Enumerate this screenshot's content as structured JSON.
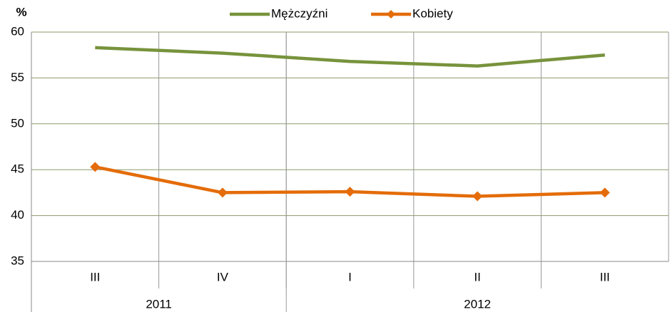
{
  "chart_data": {
    "type": "line",
    "y_label": "%",
    "categories": [
      "III",
      "IV",
      "I",
      "II",
      "III"
    ],
    "groups": [
      {
        "label": "2011",
        "size": 2
      },
      {
        "label": "2012",
        "size": 3
      }
    ],
    "series": [
      {
        "name": "Mężczyźni",
        "color": "#77933c",
        "marker": "none",
        "values": [
          58.3,
          57.7,
          56.8,
          56.3,
          57.5
        ]
      },
      {
        "name": "Kobiety",
        "color": "#e46c0a",
        "marker": "diamond",
        "values": [
          45.3,
          42.5,
          42.6,
          42.1,
          42.5
        ]
      }
    ],
    "ylim": [
      35,
      60
    ],
    "yticks": [
      35,
      40,
      45,
      50,
      55,
      60
    ],
    "grid": true,
    "legend": "top"
  }
}
